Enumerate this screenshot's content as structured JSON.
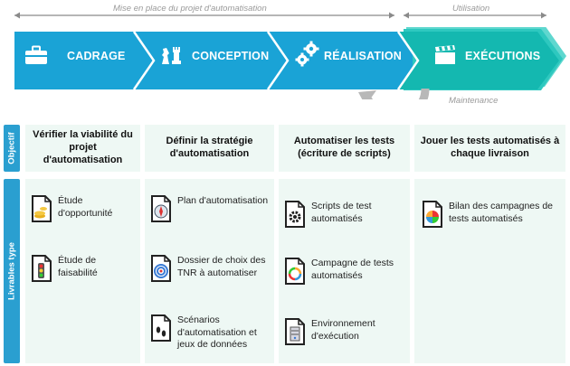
{
  "phases": {
    "setup_label": "Mise en place du projet d'automatisation",
    "usage_label": "Utilisation"
  },
  "stages": [
    {
      "name": "CADRAGE",
      "icon": "briefcase-icon"
    },
    {
      "name": "CONCEPTION",
      "icon": "chess-pieces-icon"
    },
    {
      "name": "RÉALISATION",
      "icon": "gears-icon"
    },
    {
      "name": "EXÉCUTIONS",
      "icon": "clapperboard-icon"
    }
  ],
  "maintenance_label": "Maintenance",
  "side_labels": {
    "objective": "Objectif",
    "deliverables": "Livrables type"
  },
  "objectives": [
    "Vérifier la viabilité du projet d'automatisation",
    "Définir la stratégie d'automatisation",
    "Automatiser les tests (écriture de scripts)",
    "Jouer les tests automatisés à chaque livraison"
  ],
  "deliverables": [
    [
      {
        "label": "Étude d'opportunité",
        "icon": "coins-document-icon"
      },
      {
        "label": "Étude de faisabilité",
        "icon": "traffic-light-document-icon"
      }
    ],
    [
      {
        "label": "Plan d'automatisation",
        "icon": "compass-document-icon"
      },
      {
        "label": "Dossier de choix des TNR à automatiser",
        "icon": "target-document-icon"
      },
      {
        "label": "Scénarios d'automatisation et jeux de données",
        "icon": "footprints-document-icon"
      }
    ],
    [
      {
        "label": "Scripts de test automatisés",
        "icon": "gear-document-icon"
      },
      {
        "label": "Campagne de tests automatisés",
        "icon": "cycle-document-icon"
      },
      {
        "label": "Environnement d'exécution",
        "icon": "server-document-icon"
      }
    ],
    [
      {
        "label": "Bilan des campagnes de tests automatisés",
        "icon": "pie-chart-document-icon"
      }
    ]
  ],
  "colors": {
    "banner": "#1aa3d6",
    "executions": "#14b8b0",
    "panel": "#eef8f4",
    "side": "#2a9fd0"
  }
}
